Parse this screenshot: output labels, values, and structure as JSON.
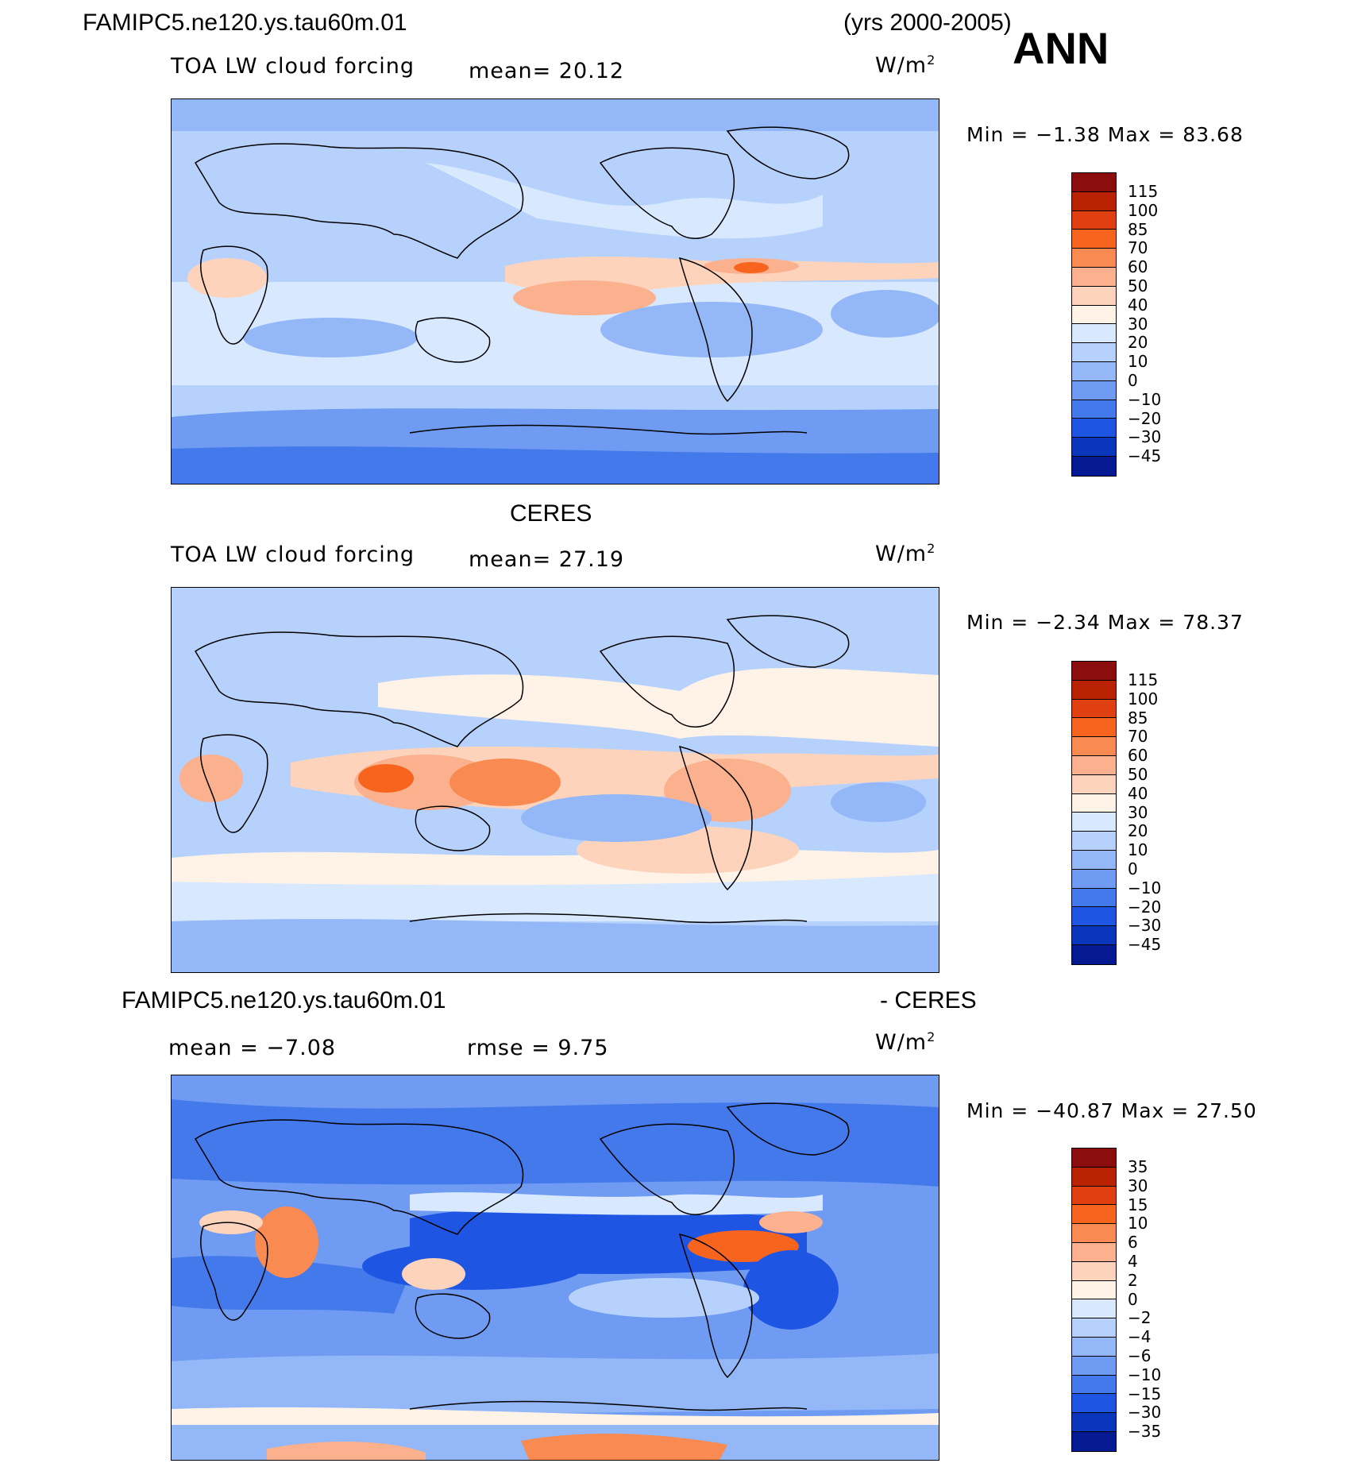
{
  "header": {
    "case_name": "FAMIPC5.ne120.ys.tau60m.01",
    "years": "(yrs 2000-2005)",
    "season": "ANN"
  },
  "panels": [
    {
      "title": "",
      "variable": "TOA LW cloud forcing",
      "mean_label": "mean=   20.12",
      "units": "W/m",
      "units_sup": "2",
      "minmax": "Min  =   −1.38  Max  =    83.68"
    },
    {
      "title": "CERES",
      "variable": "TOA LW cloud forcing",
      "mean_label": "mean=   27.19",
      "units": "W/m",
      "units_sup": "2",
      "minmax": "Min  =   −2.34  Max  =    78.37"
    },
    {
      "title_left": "FAMIPC5.ne120.ys.tau60m.01",
      "title_right": "- CERES",
      "mean_label": "mean  =   −7.08",
      "rmse_label": "rmse  =     9.75",
      "units": "W/m",
      "units_sup": "2",
      "minmax": "Min  = −40.87  Max  =    27.50"
    }
  ],
  "colorbar_abs": {
    "labels": [
      "115",
      "100",
      "85",
      "70",
      "60",
      "50",
      "40",
      "30",
      "20",
      "10",
      "0",
      "−10",
      "−20",
      "−30",
      "−45"
    ],
    "colors": [
      "#8b0d0d",
      "#b82200",
      "#e0400f",
      "#f7641e",
      "#f98a51",
      "#fbb08e",
      "#fdd4bb",
      "#fff3e8",
      "#d8e9ff",
      "#b6d1fb",
      "#93b7f7",
      "#6f9cf2",
      "#4479eb",
      "#1e55e3",
      "#0a36bb",
      "#051a92"
    ]
  },
  "colorbar_diff": {
    "labels": [
      "35",
      "30",
      "15",
      "10",
      "6",
      "4",
      "2",
      "0",
      "−2",
      "−4",
      "−6",
      "−10",
      "−15",
      "−30",
      "−35"
    ],
    "colors": [
      "#8b0d0d",
      "#b82200",
      "#e0400f",
      "#f7641e",
      "#f98a51",
      "#fbb08e",
      "#fdd4bb",
      "#fff3e8",
      "#d8e9ff",
      "#b6d1fb",
      "#93b7f7",
      "#6f9cf2",
      "#4479eb",
      "#1e55e3",
      "#0a36bb",
      "#051a92"
    ]
  }
}
